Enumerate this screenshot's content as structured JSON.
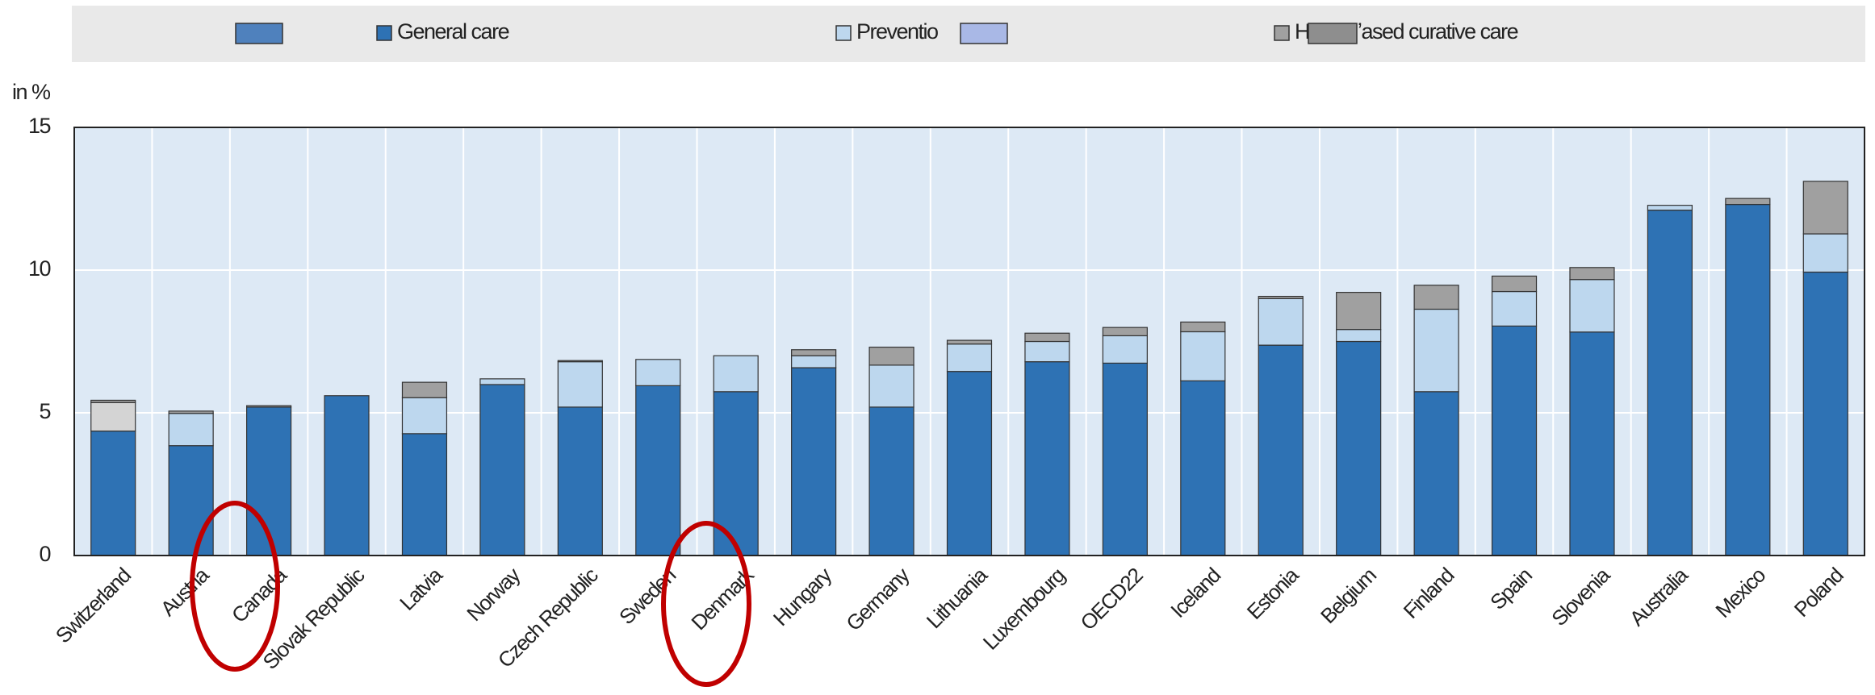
{
  "chart_data": {
    "type": "stacked_bar",
    "y_axis_label": "in %",
    "categories": [
      "Switzerland",
      "Austria",
      "Canada",
      "Slovak Republic",
      "Latvia",
      "Norway",
      "Czech Republic",
      "Sweden",
      "Denmark",
      "Hungary",
      "Germany",
      "Lithuania",
      "Luxembourg",
      "OECD22",
      "Iceland",
      "Estonia",
      "Belgium",
      "Finland",
      "Spain",
      "Slovenia",
      "Australia",
      "Mexico",
      "Poland"
    ],
    "series": [
      {
        "name": "General care",
        "color": "#2e72b4",
        "values": [
          4.36,
          3.85,
          5.2,
          5.6,
          4.27,
          5.99,
          5.2,
          5.95,
          5.74,
          6.58,
          5.2,
          6.45,
          6.79,
          6.74,
          6.12,
          7.37,
          7.5,
          5.74,
          8.04,
          7.83,
          12.1,
          12.3,
          9.93
        ]
      },
      {
        "color": "#d4d4d4",
        "values": [
          1.0,
          0,
          0,
          0,
          0,
          0,
          0,
          0,
          0,
          0,
          0,
          0,
          0,
          0,
          0,
          0,
          0,
          0,
          0,
          0,
          0,
          0,
          0
        ]
      },
      {
        "name": "Preventio",
        "color": "#bdd7ee",
        "values": [
          0,
          1.13,
          0,
          0,
          1.26,
          0.2,
          1.59,
          0.92,
          1.26,
          0.42,
          1.47,
          0.96,
          0.71,
          0.96,
          1.72,
          1.63,
          0.42,
          2.89,
          1.21,
          1.84,
          0.17,
          0,
          1.34
        ]
      },
      {
        "name": "H",
        "color": "#a0a0a0",
        "values": [
          0.08,
          0.08,
          0.05,
          0,
          0.54,
          0,
          0.04,
          0,
          0,
          0.21,
          0.63,
          0.13,
          0.29,
          0.29,
          0.34,
          0.08,
          1.3,
          0.84,
          0.54,
          0.42,
          0,
          0.21,
          1.84
        ]
      }
    ],
    "legend_text_fragment": "ʼased curative care",
    "ylim": [
      0,
      15
    ],
    "yticks": [
      0,
      5,
      10,
      15
    ],
    "grid": true
  }
}
